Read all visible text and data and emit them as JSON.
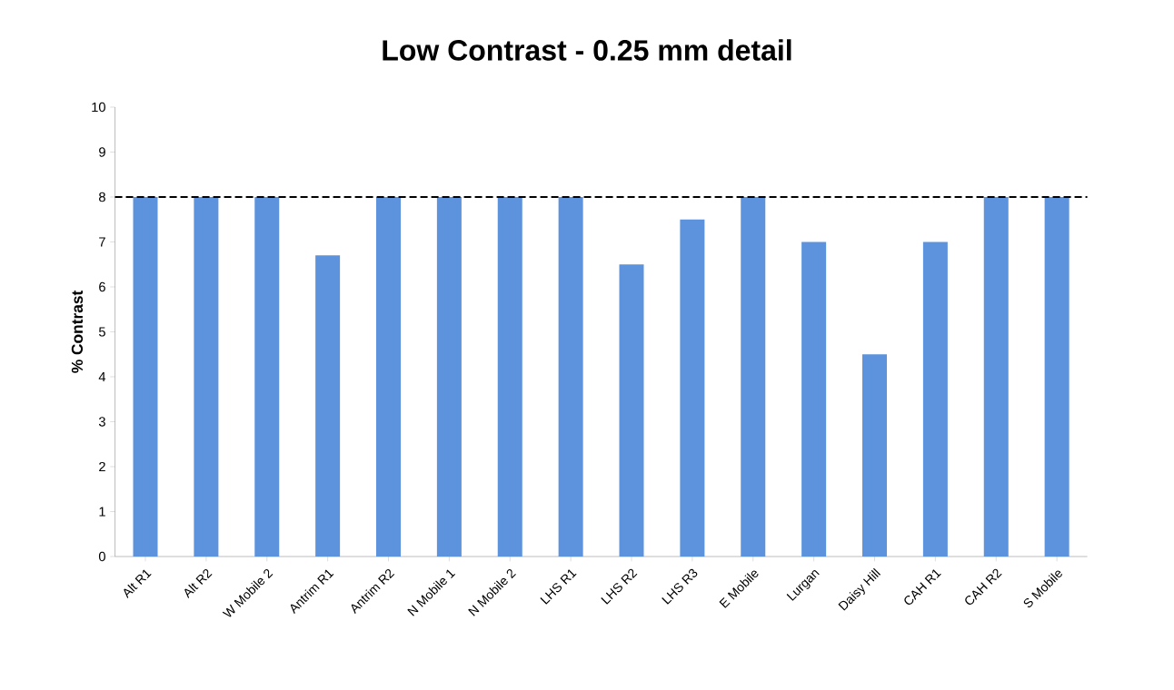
{
  "chart_data": {
    "type": "bar",
    "title": "Low Contrast - 0.25 mm detail",
    "ylabel": "% Contrast",
    "categories": [
      "Alt R1",
      "Alt R2",
      "W Mobile 2",
      "Antrim R1",
      "Antrim R2",
      "N Mobile 1",
      "N Mobile 2",
      "LHS R1",
      "LHS R2",
      "LHS R3",
      "E Mobile",
      "Lurgan",
      "Daisy Hill",
      "CAH R1",
      "CAH R2",
      "S Mobile"
    ],
    "values": [
      8,
      8,
      8,
      6.7,
      8,
      8,
      8,
      8,
      6.5,
      7.5,
      8,
      7,
      4.5,
      7,
      8,
      8
    ],
    "color": "#5d93dc",
    "ylim": [
      0,
      10
    ],
    "yticks": [
      0,
      1,
      2,
      3,
      4,
      5,
      6,
      7,
      8,
      9,
      10
    ],
    "ref_lines": [
      {
        "axis": "y",
        "value": 8,
        "color": "#000000",
        "line_style": "dashed"
      }
    ]
  }
}
